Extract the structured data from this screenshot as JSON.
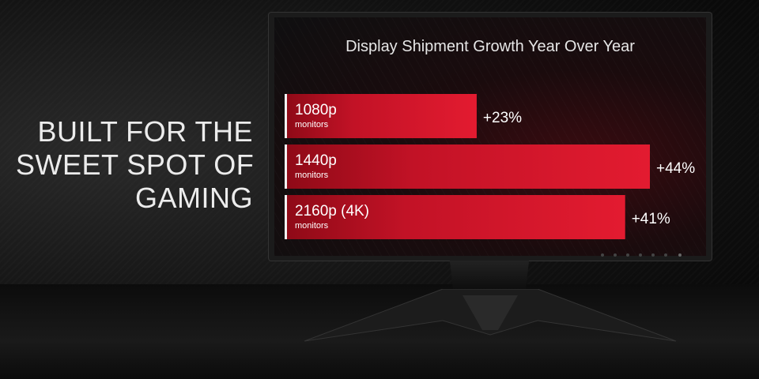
{
  "headline": [
    "BUILT FOR THE",
    "SWEET SPOT OF",
    "GAMING"
  ],
  "chart_data": {
    "type": "bar",
    "orientation": "horizontal",
    "title": "Display Shipment Growth Year Over Year",
    "categories": [
      {
        "label": "1080p",
        "sublabel": "monitors"
      },
      {
        "label": "1440p",
        "sublabel": "monitors"
      },
      {
        "label": "2160p (4K)",
        "sublabel": "monitors"
      }
    ],
    "values": [
      23,
      44,
      41
    ],
    "data_labels": [
      "+23%",
      "+44%",
      "+41%"
    ],
    "xlim": [
      0,
      44
    ],
    "grid": false,
    "colors": {
      "bar": "#d4152a",
      "bar_dark": "#8f0a17"
    }
  }
}
